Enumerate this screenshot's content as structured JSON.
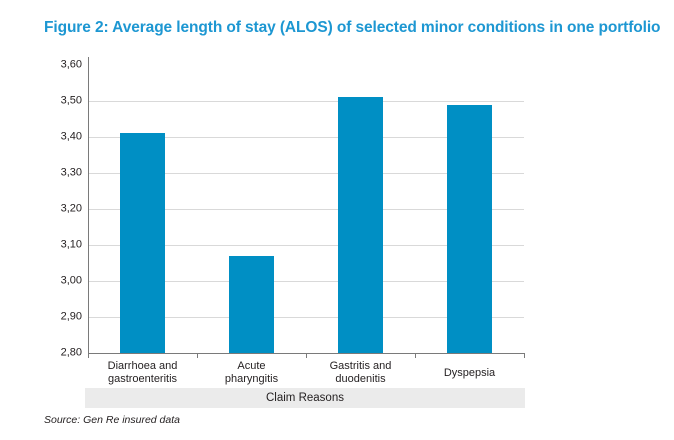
{
  "figure": {
    "title": "Figure 2: Average length of stay (ALOS) of selected minor conditions in one portfolio",
    "source_note": "Source: Gen Re insured data"
  },
  "colors": {
    "title_text": "#1d97d2",
    "bar_fill": "#008fc4",
    "gridline": "#d9d9d9",
    "axis_line": "#7a7a7a",
    "band_background": "#ebebeb",
    "label_text": "#231f20"
  },
  "chart_data": {
    "type": "bar",
    "title": "Figure 2: Average length of stay (ALOS) of selected minor conditions in one portfolio",
    "xlabel": "Claim Reasons",
    "ylabel": "",
    "ylim": [
      2.8,
      3.6
    ],
    "ytick_step": 0.1,
    "ytick_labels": [
      "2,80",
      "2,90",
      "3,00",
      "3,10",
      "3,20",
      "3,30",
      "3,40",
      "3,50",
      "3,60"
    ],
    "decimal_separator": ",",
    "grid": true,
    "legend": false,
    "categories": [
      "Diarrhoea and gastroenteritis",
      "Acute pharyngitis",
      "Gastritis and duodenitis",
      "Dyspepsia"
    ],
    "category_lines": [
      [
        "Diarrhoea and",
        "gastroenteritis"
      ],
      [
        "Acute",
        "pharyngitis"
      ],
      [
        "Gastritis and",
        "duodenitis"
      ],
      [
        "Dyspepsia"
      ]
    ],
    "values": [
      3.41,
      3.07,
      3.51,
      3.49
    ]
  }
}
